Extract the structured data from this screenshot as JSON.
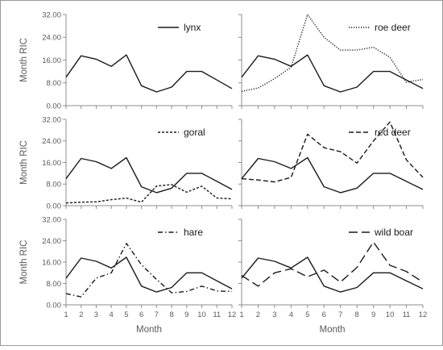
{
  "chart_data": {
    "type": "line",
    "layout": "small-multiples-3x2",
    "xlabel": "Month",
    "ylabel": "Month RIC",
    "x": [
      1,
      2,
      3,
      4,
      5,
      6,
      7,
      8,
      9,
      10,
      11,
      12
    ],
    "ylim": [
      0,
      32
    ],
    "y_ticks": [
      "0.00",
      "8.00",
      "16.00",
      "24.00",
      "32.00"
    ],
    "grid": false,
    "legend_placement": "top-right of each panel",
    "reference_series": {
      "name": "lynx",
      "style": "solid",
      "values": [
        10.0,
        17.5,
        16.3,
        13.8,
        17.8,
        7.0,
        4.8,
        6.5,
        12.0,
        12.0,
        9.0,
        6.0
      ]
    },
    "panels": [
      {
        "legend_label": "lynx",
        "legend_style": "solid",
        "series": []
      },
      {
        "legend_label": "roe deer",
        "legend_style": "dotted",
        "series": [
          {
            "name": "roe deer",
            "style": "dotted",
            "values": [
              5.0,
              6.2,
              9.5,
              13.5,
              32.0,
              24.0,
              19.5,
              19.5,
              20.5,
              17.0,
              8.2,
              9.2
            ]
          }
        ]
      },
      {
        "legend_label": "goral",
        "legend_style": "short-dash",
        "series": [
          {
            "name": "goral",
            "style": "short-dash",
            "values": [
              1.0,
              1.3,
              1.4,
              2.2,
              2.8,
              1.3,
              7.3,
              7.8,
              5.0,
              7.2,
              2.8,
              2.5
            ]
          }
        ]
      },
      {
        "legend_label": "red deer",
        "legend_style": "dash",
        "series": [
          {
            "name": "red deer",
            "style": "dash",
            "values": [
              10.0,
              9.5,
              8.8,
              10.5,
              26.5,
              21.5,
              20.0,
              15.8,
              24.0,
              31.0,
              17.0,
              10.5
            ]
          }
        ]
      },
      {
        "legend_label": "hare",
        "legend_style": "dash-dot",
        "series": [
          {
            "name": "hare",
            "style": "dash-dot",
            "values": [
              4.2,
              3.0,
              10.0,
              12.0,
              23.0,
              15.0,
              9.5,
              4.5,
              5.0,
              7.0,
              5.2,
              5.0
            ]
          }
        ]
      },
      {
        "legend_label": "wild boar",
        "legend_style": "long-dash",
        "series": [
          {
            "name": "wild boar",
            "style": "long-dash",
            "values": [
              11.0,
              7.0,
              12.0,
              13.5,
              10.5,
              13.0,
              8.5,
              14.0,
              23.5,
              14.8,
              12.5,
              8.5
            ]
          }
        ]
      }
    ]
  }
}
